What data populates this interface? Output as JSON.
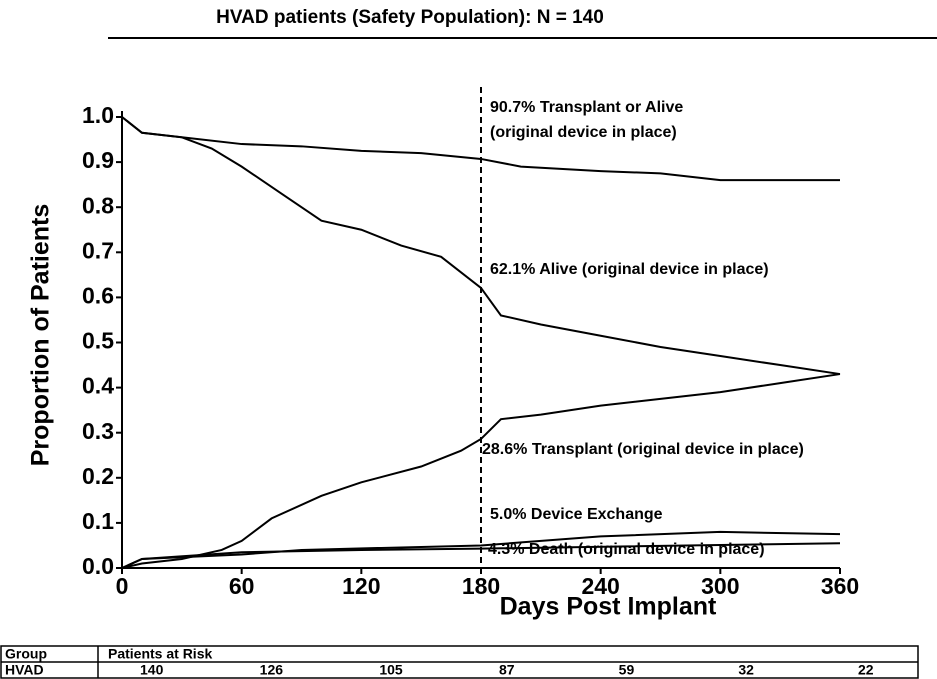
{
  "chart_data": {
    "type": "line",
    "title": "HVAD patients (Safety Population): N = 140",
    "x_label": "Days Post Implant",
    "y_label": "Proportion of Patients",
    "xlim": [
      0,
      360
    ],
    "xticks": [
      0,
      60,
      120,
      180,
      240,
      300,
      360
    ],
    "ylim": [
      0,
      1
    ],
    "yticks": [
      {
        "value": 0,
        "label": "0.0"
      },
      0.1,
      0.2,
      0.3,
      0.4,
      0.5,
      0.6,
      0.7,
      0.8,
      0.9,
      {
        "value": 1,
        "label": "1.0"
      }
    ],
    "reference_x": 180,
    "series": [
      {
        "name": "Transplant or Alive",
        "color": "#000000",
        "x": [
          0,
          10,
          30,
          60,
          90,
          120,
          150,
          180,
          200,
          240,
          270,
          300,
          360
        ],
        "values": [
          1.0,
          0.965,
          0.955,
          0.94,
          0.935,
          0.925,
          0.92,
          0.907,
          0.89,
          0.88,
          0.875,
          0.86,
          0.86
        ]
      },
      {
        "name": "Alive",
        "color": "#000000",
        "x": [
          0,
          10,
          30,
          45,
          60,
          80,
          100,
          120,
          140,
          160,
          180,
          190,
          210,
          240,
          270,
          300,
          330,
          360
        ],
        "values": [
          1.0,
          0.965,
          0.955,
          0.93,
          0.89,
          0.83,
          0.77,
          0.75,
          0.715,
          0.69,
          0.621,
          0.56,
          0.54,
          0.515,
          0.49,
          0.47,
          0.45,
          0.43
        ]
      },
      {
        "name": "Transplant",
        "color": "#000000",
        "x": [
          0,
          10,
          30,
          50,
          60,
          75,
          100,
          120,
          150,
          170,
          180,
          190,
          210,
          240,
          270,
          300,
          330,
          360
        ],
        "values": [
          0,
          0.01,
          0.02,
          0.04,
          0.06,
          0.11,
          0.16,
          0.19,
          0.225,
          0.26,
          0.286,
          0.33,
          0.34,
          0.36,
          0.375,
          0.39,
          0.41,
          0.43
        ]
      },
      {
        "name": "Device Exchange",
        "color": "#000000",
        "x": [
          0,
          10,
          60,
          90,
          180,
          240,
          300,
          360
        ],
        "values": [
          0,
          0.02,
          0.03,
          0.04,
          0.05,
          0.07,
          0.08,
          0.075
        ]
      },
      {
        "name": "Death",
        "color": "#000000",
        "x": [
          0,
          10,
          60,
          120,
          180,
          360
        ],
        "values": [
          0,
          0.02,
          0.035,
          0.04,
          0.043,
          0.055
        ]
      }
    ],
    "annotations": [
      "90.7% Transplant or Alive",
      "(original device in place)",
      "62.1% Alive (original device in place)",
      "28.6% Transplant  (original device in place)",
      "5.0% Device Exchange",
      "4.3% Death (original device in place)"
    ],
    "risk_table": {
      "headers": [
        "Group",
        "Patients at Risk"
      ],
      "rows": [
        [
          "HVAD",
          140,
          126,
          105,
          87,
          59,
          32,
          22
        ]
      ]
    }
  }
}
